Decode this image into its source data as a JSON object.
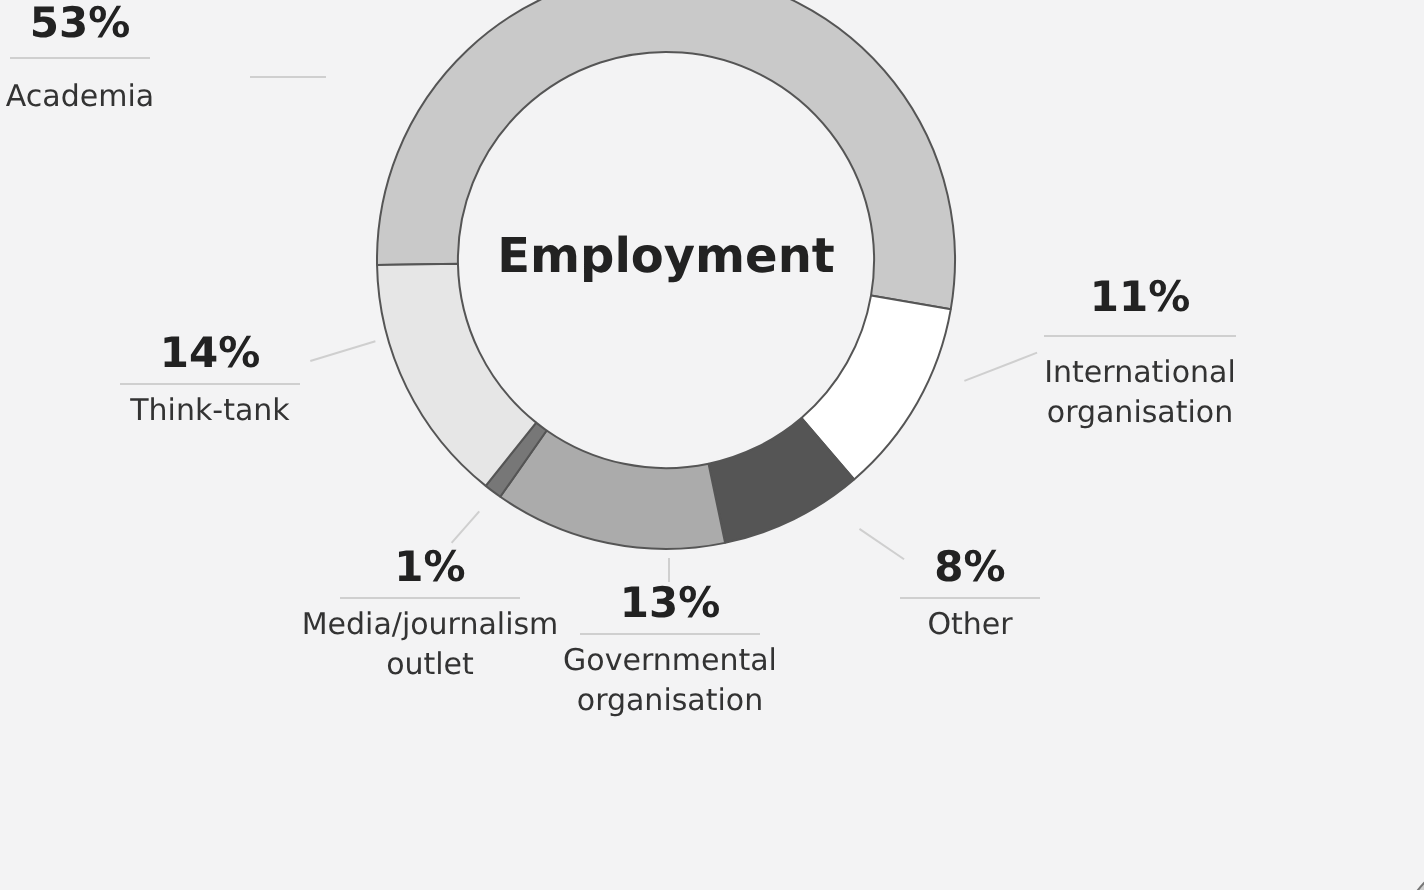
{
  "chart_data": {
    "type": "donut",
    "title": "Employment",
    "categories": [
      "Academia",
      "International organisation",
      "Other",
      "Governmental organisation",
      "Media/journalism outlet",
      "Think-tank"
    ],
    "values": [
      53,
      11,
      8,
      13,
      1,
      14
    ],
    "colors": [
      "#c9c9c9",
      "#ffffff",
      "#555555",
      "#ababab",
      "#777777",
      "#e6e6e6"
    ],
    "value_labels": [
      "53%",
      "11%",
      "8%",
      "13%",
      "1%",
      "14%"
    ]
  }
}
